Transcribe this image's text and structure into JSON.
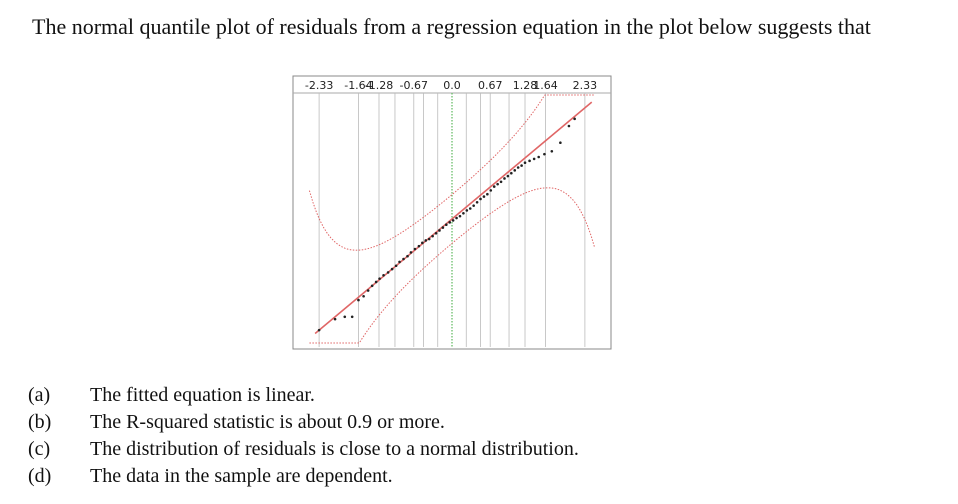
{
  "question": "The normal quantile plot of residuals from a regression equation in the plot below suggests that",
  "options": [
    {
      "label": "(a)",
      "text": "The fitted equation is linear."
    },
    {
      "label": "(b)",
      "text": "The R-squared statistic is about 0.9 or more."
    },
    {
      "label": "(c)",
      "text": "The distribution of residuals is close to a normal distribution."
    },
    {
      "label": "(d)",
      "text": "The data in the sample are dependent."
    }
  ],
  "colors": {
    "fit_line": "#e06666",
    "confidence_band": "#e06666",
    "center_line": "#5cb85c",
    "gridline": "#bbbbbb",
    "points": "#222222"
  },
  "chart_data": {
    "type": "scatter",
    "title": "",
    "xlabel": "",
    "ylabel": "",
    "top_tick_labels": [
      "-2.33",
      "-1.64",
      "-1.28",
      "-0.67",
      "0.0",
      "0.67",
      "1.28",
      "1.64",
      "2.33"
    ],
    "top_tick_values": [
      -2.33,
      -1.64,
      -1.28,
      -0.67,
      0.0,
      0.67,
      1.28,
      1.64,
      2.33
    ],
    "extra_gridlines": [
      -1.0,
      -0.5,
      -0.25,
      0.25,
      0.5,
      1.0
    ],
    "xlim": [
      -2.7,
      2.7
    ],
    "ylim": [
      -2.6,
      2.6
    ],
    "grid": true,
    "legend": "none",
    "reference_line": {
      "slope": 1,
      "intercept": 0
    },
    "points": [
      [
        -2.33,
        -2.33
      ],
      [
        -2.05,
        -2.1
      ],
      [
        -1.88,
        -2.05
      ],
      [
        -1.75,
        -2.05
      ],
      [
        -1.64,
        -1.7
      ],
      [
        -1.55,
        -1.62
      ],
      [
        -1.47,
        -1.5
      ],
      [
        -1.4,
        -1.4
      ],
      [
        -1.33,
        -1.32
      ],
      [
        -1.27,
        -1.25
      ],
      [
        -1.2,
        -1.18
      ],
      [
        -1.12,
        -1.12
      ],
      [
        -1.05,
        -1.05
      ],
      [
        -0.98,
        -0.98
      ],
      [
        -0.92,
        -0.9
      ],
      [
        -0.85,
        -0.84
      ],
      [
        -0.78,
        -0.78
      ],
      [
        -0.72,
        -0.7
      ],
      [
        -0.65,
        -0.63
      ],
      [
        -0.58,
        -0.57
      ],
      [
        -0.52,
        -0.5
      ],
      [
        -0.46,
        -0.45
      ],
      [
        -0.4,
        -0.42
      ],
      [
        -0.34,
        -0.36
      ],
      [
        -0.28,
        -0.3
      ],
      [
        -0.22,
        -0.24
      ],
      [
        -0.16,
        -0.18
      ],
      [
        -0.1,
        -0.12
      ],
      [
        -0.04,
        -0.07
      ],
      [
        0.02,
        -0.03
      ],
      [
        0.08,
        0.02
      ],
      [
        0.14,
        0.06
      ],
      [
        0.2,
        0.12
      ],
      [
        0.26,
        0.18
      ],
      [
        0.32,
        0.22
      ],
      [
        0.38,
        0.28
      ],
      [
        0.44,
        0.35
      ],
      [
        0.5,
        0.42
      ],
      [
        0.56,
        0.47
      ],
      [
        0.62,
        0.52
      ],
      [
        0.68,
        0.6
      ],
      [
        0.74,
        0.68
      ],
      [
        0.8,
        0.73
      ],
      [
        0.86,
        0.78
      ],
      [
        0.92,
        0.85
      ],
      [
        0.98,
        0.9
      ],
      [
        1.04,
        0.96
      ],
      [
        1.1,
        1.02
      ],
      [
        1.16,
        1.08
      ],
      [
        1.22,
        1.12
      ],
      [
        1.28,
        1.18
      ],
      [
        1.36,
        1.22
      ],
      [
        1.44,
        1.26
      ],
      [
        1.52,
        1.3
      ],
      [
        1.62,
        1.36
      ],
      [
        1.75,
        1.42
      ],
      [
        1.9,
        1.6
      ],
      [
        2.05,
        1.95
      ],
      [
        2.15,
        2.1
      ]
    ]
  }
}
